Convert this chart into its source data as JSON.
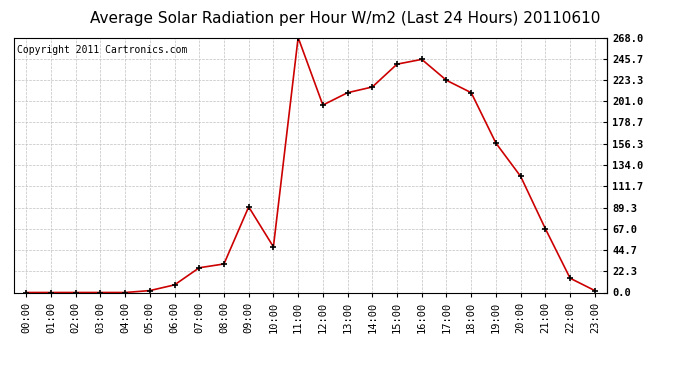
{
  "title": "Average Solar Radiation per Hour W/m2 (Last 24 Hours) 20110610",
  "copyright": "Copyright 2011 Cartronics.com",
  "x_labels": [
    "00:00",
    "01:00",
    "02:00",
    "03:00",
    "04:00",
    "05:00",
    "06:00",
    "07:00",
    "08:00",
    "09:00",
    "10:00",
    "11:00",
    "12:00",
    "13:00",
    "14:00",
    "15:00",
    "16:00",
    "17:00",
    "18:00",
    "19:00",
    "20:00",
    "21:00",
    "22:00",
    "23:00"
  ],
  "y_values": [
    0.0,
    0.0,
    0.0,
    0.0,
    0.0,
    2.0,
    8.0,
    26.0,
    30.0,
    90.0,
    48.0,
    268.0,
    197.0,
    210.0,
    216.0,
    240.0,
    245.0,
    223.0,
    210.0,
    157.0,
    122.0,
    67.0,
    15.0,
    2.0
  ],
  "line_color": "#cc0000",
  "marker": "+",
  "marker_size": 5,
  "marker_color": "#000000",
  "bg_color": "#ffffff",
  "grid_color": "#c0c0c0",
  "title_fontsize": 11,
  "copyright_fontsize": 7,
  "tick_fontsize": 7.5,
  "y_ticks": [
    0.0,
    22.3,
    44.7,
    67.0,
    89.3,
    111.7,
    134.0,
    156.3,
    178.7,
    201.0,
    223.3,
    245.7,
    268.0
  ],
  "ylim": [
    0.0,
    268.0
  ],
  "border_color": "#000000"
}
